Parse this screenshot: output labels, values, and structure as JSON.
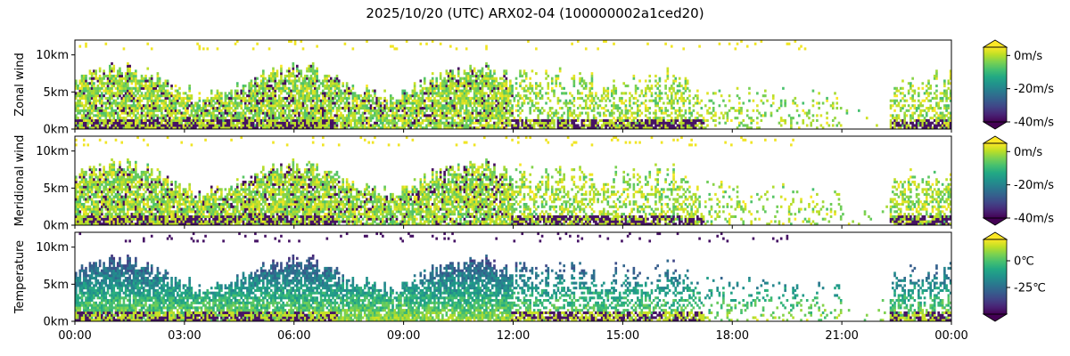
{
  "figure": {
    "title": "2025/10/20 (UTC) ARX02-04 (100000002a1ced20)"
  },
  "chart_data": [
    {
      "type": "heatmap",
      "ylabel": "Zonal wind",
      "x_ticks": [
        "00:00",
        "03:00",
        "06:00",
        "09:00",
        "12:00",
        "15:00",
        "18:00",
        "21:00",
        "00:00"
      ],
      "x_range_hours": [
        0,
        24
      ],
      "y_ticks": [
        {
          "value": 0,
          "label": "0km"
        },
        {
          "value": 5,
          "label": "5km"
        },
        {
          "value": 10,
          "label": "10km"
        }
      ],
      "y_range_km": [
        0,
        12
      ],
      "colorbar": {
        "colormap": "viridis",
        "range": [
          -40,
          5
        ],
        "ticks": [
          {
            "value": 0,
            "label": "0m/s"
          },
          {
            "value": -20,
            "label": "-20m/s"
          },
          {
            "value": -40,
            "label": "-40m/s"
          }
        ]
      }
    },
    {
      "type": "heatmap",
      "ylabel": "Meridional wind",
      "x_ticks": [
        "00:00",
        "03:00",
        "06:00",
        "09:00",
        "12:00",
        "15:00",
        "18:00",
        "21:00",
        "00:00"
      ],
      "x_range_hours": [
        0,
        24
      ],
      "y_ticks": [
        {
          "value": 0,
          "label": "0km"
        },
        {
          "value": 5,
          "label": "5km"
        },
        {
          "value": 10,
          "label": "10km"
        }
      ],
      "y_range_km": [
        0,
        12
      ],
      "colorbar": {
        "colormap": "viridis",
        "range": [
          -40,
          5
        ],
        "ticks": [
          {
            "value": 0,
            "label": "0m/s"
          },
          {
            "value": -20,
            "label": "-20m/s"
          },
          {
            "value": -40,
            "label": "-40m/s"
          }
        ]
      }
    },
    {
      "type": "heatmap",
      "ylabel": "Temperature",
      "x_ticks": [
        "00:00",
        "03:00",
        "06:00",
        "09:00",
        "12:00",
        "15:00",
        "18:00",
        "21:00",
        "00:00"
      ],
      "x_range_hours": [
        0,
        24
      ],
      "y_ticks": [
        {
          "value": 0,
          "label": "0km"
        },
        {
          "value": 5,
          "label": "5km"
        },
        {
          "value": 10,
          "label": "10km"
        }
      ],
      "y_range_km": [
        0,
        12
      ],
      "colorbar": {
        "colormap": "viridis",
        "range": [
          -50,
          20
        ],
        "ticks": [
          {
            "value": 0,
            "label": "0℃"
          },
          {
            "value": -25,
            "label": "-25℃"
          }
        ]
      }
    }
  ]
}
